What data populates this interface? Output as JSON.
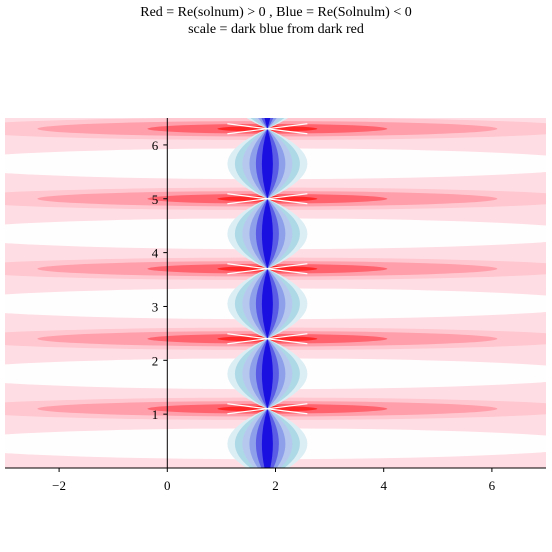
{
  "chart_data": {
    "type": "heatmap",
    "title": "Red = Re(solnum) > 0 , Blue = Re(Solnulm) < 0",
    "subtitle": "scale = dark blue from dark red",
    "xlabel": "",
    "ylabel": "",
    "xlim": [
      -3,
      7
    ],
    "ylim": [
      0,
      6.5
    ],
    "x_ticks": [
      -2,
      0,
      2,
      4,
      6
    ],
    "y_ticks": [
      1,
      2,
      3,
      4,
      5,
      6
    ],
    "x_tick_labels": [
      "−2",
      "0",
      "2",
      "4",
      "6"
    ],
    "y_tick_labels": [
      "1",
      "2",
      "3",
      "4",
      "5",
      "6"
    ],
    "crossing_points": [
      {
        "x": 1.85,
        "y": 1.1
      },
      {
        "x": 1.85,
        "y": 2.4
      },
      {
        "x": 1.85,
        "y": 3.7
      },
      {
        "x": 1.85,
        "y": 5.0
      },
      {
        "x": 1.85,
        "y": 6.3
      }
    ],
    "grid": false,
    "legend": "none",
    "colors": {
      "positive_dark": "#ff2020",
      "positive_light": "#ffdde4",
      "negative_dark": "#1a10e0",
      "negative_light": "#add8e6",
      "zero": "#ffffff"
    }
  }
}
